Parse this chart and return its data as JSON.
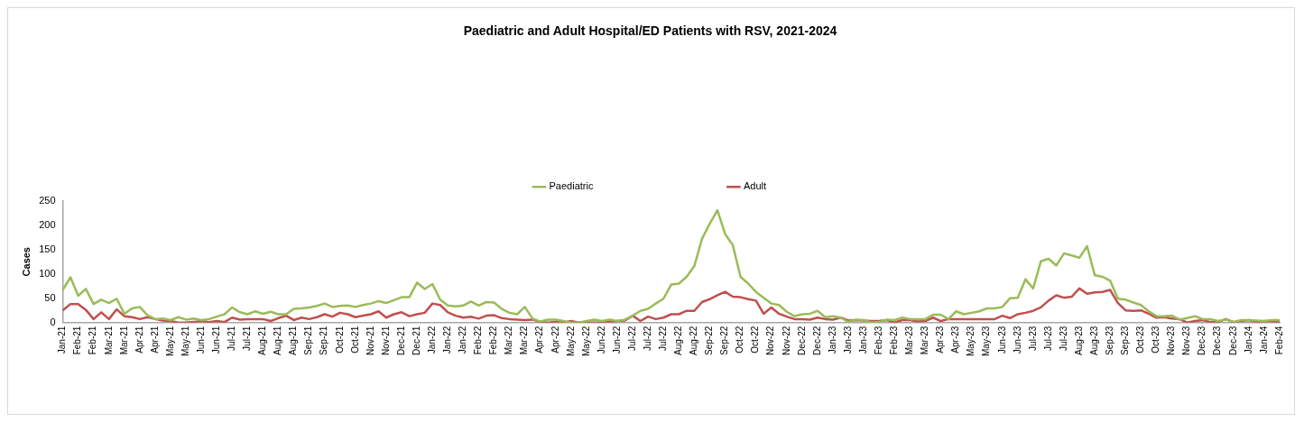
{
  "chart_data": {
    "type": "line",
    "title": "Paediatric and Adult Hospital/ED Patients with RSV, 2021-2024",
    "ylabel": "Cases",
    "categories": [
      "Jan-21",
      null,
      "Feb-21",
      null,
      "Feb-21",
      null,
      "Mar-21",
      null,
      "Mar-21",
      null,
      "Apr-21",
      null,
      "Apr-21",
      null,
      "May-21",
      null,
      "May-21",
      null,
      "Jun-21",
      null,
      "Jun-21",
      null,
      "Jul-21",
      null,
      "Jul-21",
      null,
      "Aug-21",
      null,
      "Aug-21",
      null,
      "Aug-21",
      null,
      "Sep-21",
      null,
      "Sep-21",
      null,
      "Oct-21",
      null,
      "Oct-21",
      null,
      "Nov-21",
      null,
      "Nov-21",
      null,
      "Dec-21",
      null,
      "Dec-21",
      null,
      "Jan-22",
      null,
      "Jan-22",
      null,
      "Jan-22",
      null,
      "Feb-22",
      null,
      "Feb-22",
      null,
      "Mar-22",
      null,
      "Mar-22",
      null,
      "Apr-22",
      null,
      "Apr-22",
      null,
      "May-22",
      null,
      "May-22",
      null,
      "Jun-22",
      null,
      "Jun-22",
      null,
      "Jul-22",
      null,
      "Jul-22",
      null,
      "Jul-22",
      null,
      "Aug-22",
      null,
      "Aug-22",
      null,
      "Sep-22",
      null,
      "Sep-22",
      null,
      "Oct-22",
      null,
      "Oct-22",
      null,
      "Nov-22",
      null,
      "Nov-22",
      null,
      "Dec-22",
      null,
      "Dec-22",
      null,
      "Jan-23",
      null,
      "Jan-23",
      null,
      "Jan-23",
      null,
      "Feb-23",
      null,
      "Feb-23",
      null,
      "Mar-23",
      null,
      "Mar-23",
      null,
      "Apr-23",
      null,
      "Apr-23",
      null,
      "May-23",
      null,
      "May-23",
      null,
      "Jun-23",
      null,
      "Jun-23",
      null,
      "Jul-23",
      null,
      "Jul-23",
      null,
      "Jul-23",
      null,
      "Aug-23",
      null,
      "Aug-23",
      null,
      "Sep-23",
      null,
      "Sep-23",
      null,
      "Oct-23",
      null,
      "Oct-23",
      null,
      "Nov-23",
      null,
      "Nov-23",
      null,
      "Dec-23",
      null,
      "Dec-23",
      null,
      "Dec-23",
      null,
      "Jan-24",
      null,
      "Jan-24",
      null,
      "Feb-24"
    ],
    "series": [
      {
        "name": "Paediatric",
        "color": "#9bbb59",
        "values": [
          67,
          93,
          55,
          69,
          38,
          47,
          40,
          49,
          18,
          29,
          32,
          15,
          7,
          8,
          5,
          11,
          6,
          8,
          5,
          7,
          12,
          17,
          31,
          21,
          17,
          23,
          18,
          22,
          17,
          17,
          28,
          29,
          31,
          34,
          39,
          32,
          34,
          35,
          32,
          36,
          39,
          44,
          40,
          46,
          52,
          52,
          82,
          69,
          79,
          47,
          35,
          33,
          35,
          43,
          35,
          42,
          41,
          28,
          20,
          17,
          32,
          8,
          2,
          6,
          6,
          3,
          0,
          0,
          3,
          6,
          3,
          6,
          3,
          6,
          14,
          24,
          28,
          39,
          49,
          78,
          80,
          94,
          116,
          172,
          203,
          231,
          182,
          159,
          94,
          80,
          63,
          51,
          39,
          36,
          22,
          13,
          17,
          18,
          24,
          11,
          13,
          10,
          1,
          6,
          5,
          0,
          1,
          6,
          5,
          10,
          7,
          7,
          7,
          16,
          16,
          7,
          23,
          17,
          20,
          23,
          29,
          29,
          32,
          50,
          51,
          89,
          70,
          126,
          131,
          117,
          142,
          138,
          133,
          157,
          97,
          94,
          86,
          49,
          47,
          41,
          36,
          23,
          13,
          13,
          14,
          6,
          9,
          13,
          7,
          7,
          3,
          6,
          1,
          5,
          5,
          4,
          3,
          5,
          5
        ]
      },
      {
        "name": "Adult",
        "color": "#c0504d",
        "values": [
          25,
          38,
          38,
          26,
          7,
          21,
          7,
          27,
          13,
          11,
          7,
          11,
          7,
          4,
          3,
          0,
          0,
          1,
          3,
          1,
          3,
          1,
          10,
          6,
          7,
          7,
          7,
          3,
          9,
          14,
          5,
          10,
          7,
          11,
          17,
          12,
          20,
          17,
          11,
          14,
          17,
          23,
          10,
          17,
          21,
          13,
          17,
          20,
          39,
          36,
          21,
          14,
          10,
          12,
          8,
          14,
          15,
          9,
          7,
          6,
          5,
          6,
          1,
          0,
          1,
          0,
          3,
          0,
          0,
          0,
          0,
          1,
          3,
          4,
          14,
          3,
          12,
          7,
          10,
          17,
          17,
          24,
          24,
          42,
          48,
          56,
          63,
          53,
          52,
          48,
          45,
          18,
          31,
          18,
          12,
          7,
          7,
          6,
          10,
          7,
          6,
          10,
          4,
          5,
          4,
          3,
          3,
          5,
          0,
          5,
          5,
          2,
          3,
          10,
          3,
          7,
          7,
          7,
          7,
          7,
          7,
          7,
          14,
          9,
          17,
          20,
          24,
          31,
          45,
          56,
          51,
          53,
          70,
          59,
          62,
          63,
          67,
          40,
          25,
          24,
          25,
          18,
          10,
          11,
          8,
          7,
          0,
          3,
          5,
          1,
          1,
          7,
          1,
          3,
          5,
          1,
          3,
          2,
          2
        ]
      }
    ],
    "ylim": [
      0,
      250
    ],
    "yticks": [
      0,
      50,
      100,
      150,
      200,
      250
    ],
    "legend": "top",
    "marker": "none"
  }
}
